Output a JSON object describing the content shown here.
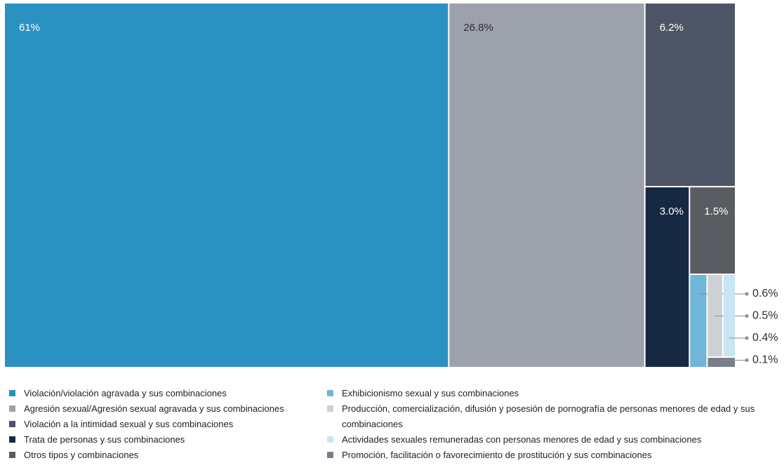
{
  "chart_data": {
    "type": "treemap",
    "categories": [
      "Violación/violación agravada y sus combinaciones",
      "Agresión sexual/Agresión sexual agravada y sus combinaciones",
      "Violación a la intimidad sexual y sus combinaciones",
      "Trata de personas y sus combinaciones",
      "Otros tipos y combinaciones",
      "Exhibicionismo sexual y sus combinaciones",
      "Producción, comercialización, difusión y posesión de pornografía de personas menores de edad y sus combinaciones",
      "Actividades sexuales remuneradas con personas menores de edad y sus combinaciones",
      "Promoción, facilitación o favorecimiento de prostitución y sus combinaciones"
    ],
    "values": [
      61,
      26.8,
      6.2,
      3.0,
      1.5,
      0.6,
      0.5,
      0.4,
      0.1
    ],
    "value_labels": [
      "61%",
      "26.8%",
      "6.2%",
      "3.0%",
      "1.5%",
      "0.6%",
      "0.5%",
      "0.4%",
      "0.1%"
    ],
    "colors": [
      "#2a91c2",
      "#9da1ab",
      "#4d5566",
      "#172843",
      "#595c60",
      "#6fb6d8",
      "#cfd0d3",
      "#c8e5f3",
      "#7a7e8a"
    ],
    "legend": "bottom"
  }
}
